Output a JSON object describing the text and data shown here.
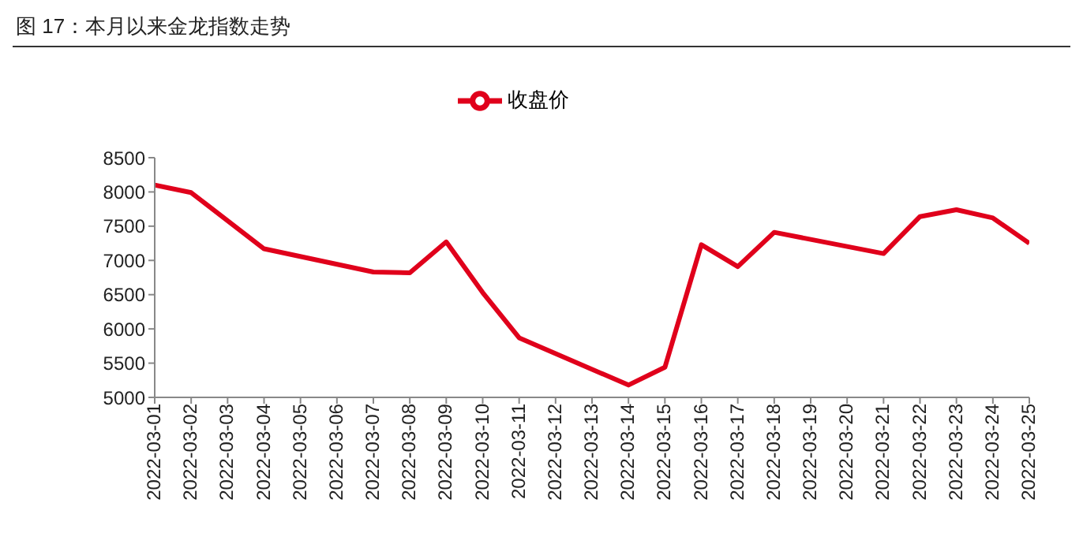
{
  "chart_data": {
    "type": "line",
    "title": "图 17：本月以来金龙指数走势",
    "x": [
      "2022-03-01",
      "2022-03-02",
      "2022-03-04",
      "2022-03-07",
      "2022-03-08",
      "2022-03-09",
      "2022-03-10",
      "2022-03-11",
      "2022-03-14",
      "2022-03-15",
      "2022-03-16",
      "2022-03-17",
      "2022-03-18",
      "2022-03-21",
      "2022-03-22",
      "2022-03-23",
      "2022-03-24",
      "2022-03-25"
    ],
    "series": [
      {
        "name": "收盘价",
        "color": "#e0001b",
        "values": [
          8100,
          7990,
          7170,
          6830,
          6820,
          7270,
          6530,
          5870,
          5180,
          5440,
          7230,
          6910,
          7410,
          7100,
          7640,
          7740,
          7620,
          7250
        ]
      }
    ],
    "xlim": [
      "2022-03-01",
      "2022-03-25"
    ],
    "xticks": [
      "2022-03-01",
      "2022-03-02",
      "2022-03-03",
      "2022-03-04",
      "2022-03-05",
      "2022-03-06",
      "2022-03-07",
      "2022-03-08",
      "2022-03-09",
      "2022-03-10",
      "2022-03-11",
      "2022-03-12",
      "2022-03-13",
      "2022-03-14",
      "2022-03-15",
      "2022-03-16",
      "2022-03-17",
      "2022-03-18",
      "2022-03-19",
      "2022-03-20",
      "2022-03-21",
      "2022-03-22",
      "2022-03-23",
      "2022-03-24",
      "2022-03-25"
    ],
    "ylim": [
      5000,
      8500
    ],
    "yticks": [
      5000,
      5500,
      6000,
      6500,
      7000,
      7500,
      8000,
      8500
    ],
    "grid": false,
    "legend": "top",
    "marker": "none",
    "line_style": "solid"
  }
}
